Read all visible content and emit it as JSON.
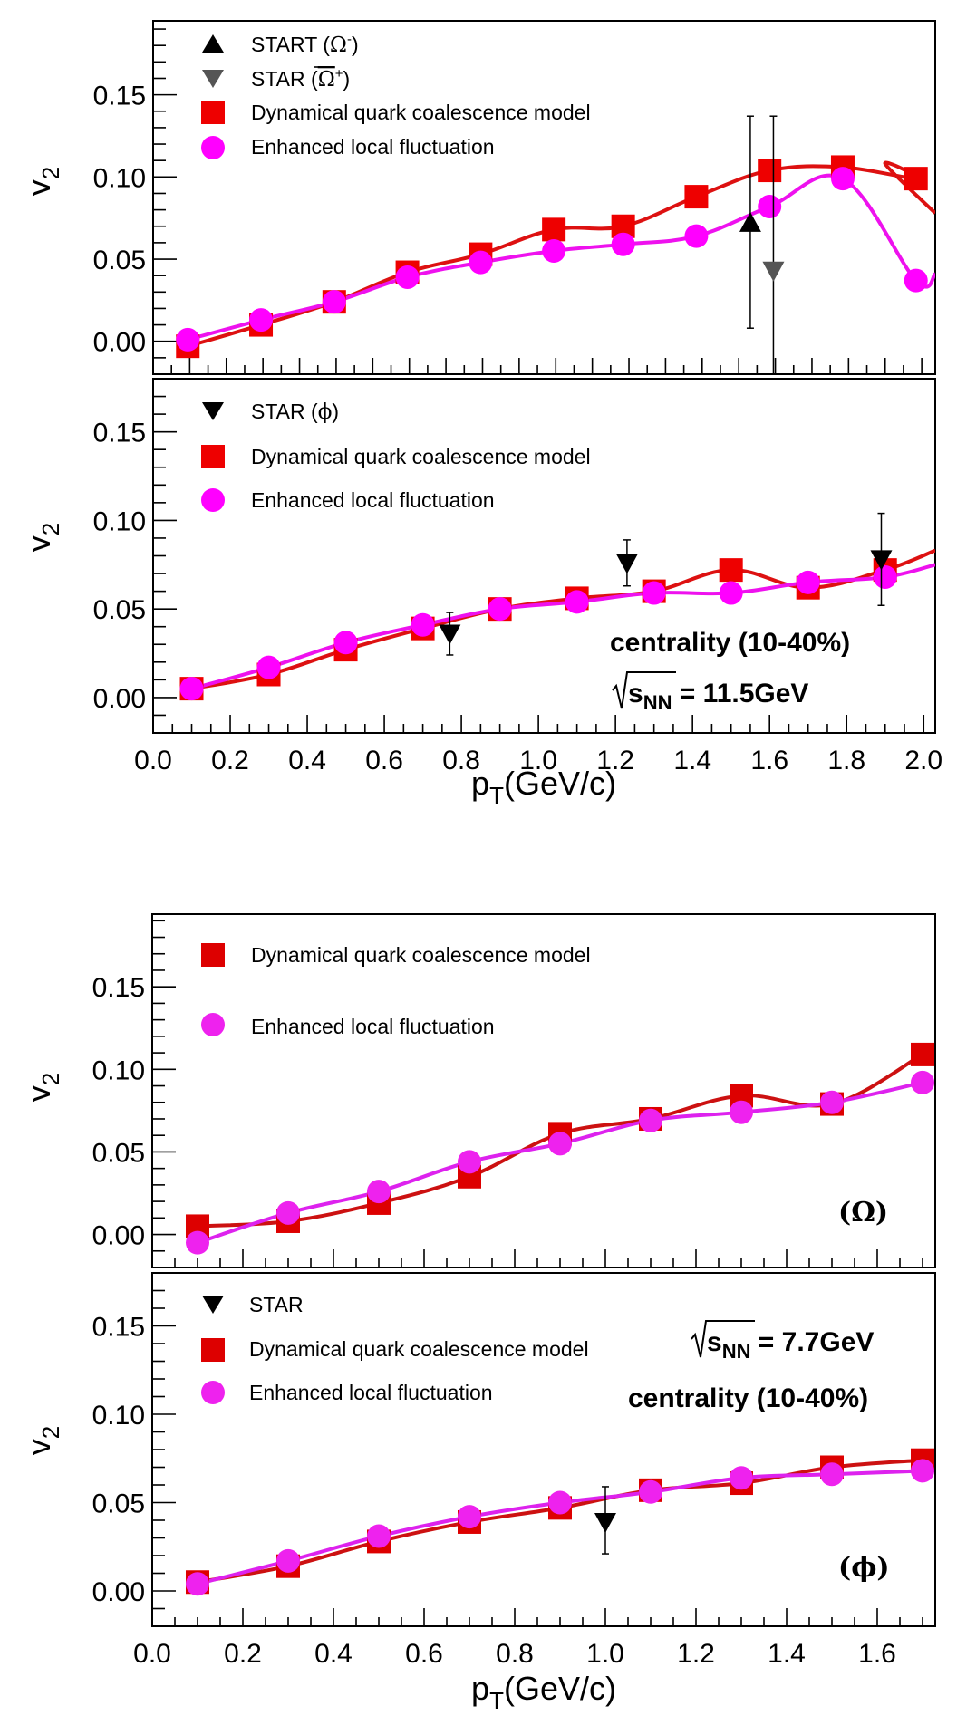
{
  "figure": {
    "upper_figure": {
      "energy_label": "√sNN = 11.5GeV",
      "centrality_label": "centrality (10-40%)"
    },
    "lower_figure": {
      "energy_label": "√sNN = 7.7GeV",
      "centrality_label": "centrality (10-40%)"
    }
  },
  "chart_data": [
    {
      "id": "panel-omega-11p5",
      "type": "line",
      "title": "",
      "xlabel": "",
      "ylabel": "v2",
      "xlim": [
        0.0,
        2.03
      ],
      "ylim": [
        -0.02,
        0.195
      ],
      "yticks": [
        "0.00",
        "0.05",
        "0.10",
        "0.15"
      ],
      "ytick_values": [
        0.0,
        0.05,
        0.1,
        0.15
      ],
      "xticks_shown": false,
      "legend": {
        "placement": "top-left",
        "entries": [
          "START (Ω⁻)",
          "STAR (Ω̄⁺)",
          "Dynamical quark coalescence model",
          "Enhanced local fluctuation"
        ]
      },
      "series": [
        {
          "name": "Dynamical quark coalescence model",
          "marker": "square",
          "color": "#ee0000",
          "line_color": "#dd1111",
          "x": [
            0.09,
            0.28,
            0.47,
            0.66,
            0.85,
            1.04,
            1.22,
            1.41,
            1.6,
            1.79,
            1.98
          ],
          "values": [
            -0.003,
            0.01,
            0.024,
            0.042,
            0.053,
            0.068,
            0.07,
            0.088,
            0.104,
            0.106,
            0.099
          ],
          "curve_tail": [
            [
              1.9,
              0.108
            ],
            [
              2.03,
              0.078
            ]
          ]
        },
        {
          "name": "Enhanced local fluctuation",
          "marker": "circle",
          "color": "#ff00ff",
          "line_color": "#ee11ee",
          "x": [
            0.09,
            0.28,
            0.47,
            0.66,
            0.85,
            1.04,
            1.22,
            1.41,
            1.6,
            1.79,
            1.98
          ],
          "values": [
            0.001,
            0.013,
            0.024,
            0.039,
            0.048,
            0.055,
            0.059,
            0.064,
            0.082,
            0.099,
            0.037
          ],
          "curve_tail": [
            [
              2.03,
              0.041
            ]
          ]
        },
        {
          "name": "START (Ω⁻)",
          "marker": "triangle-up",
          "color": "#000000",
          "x": [
            1.55
          ],
          "values": [
            0.071
          ],
          "err_low": [
            0.008
          ],
          "err_high": [
            0.137
          ]
        },
        {
          "name": "STAR (Ω̄⁺)",
          "marker": "triangle-down",
          "color": "#555555",
          "x": [
            1.61
          ],
          "values": [
            0.043
          ],
          "err_low": [
            -0.02
          ],
          "err_high": [
            0.137
          ]
        }
      ]
    },
    {
      "id": "panel-phi-11p5",
      "type": "line",
      "title": "",
      "xlabel": "pT(GeV/c)",
      "ylabel": "v2",
      "xlim": [
        0.0,
        2.03
      ],
      "ylim": [
        -0.02,
        0.18
      ],
      "yticks": [
        "0.00",
        "0.05",
        "0.10",
        "0.15"
      ],
      "ytick_values": [
        0.0,
        0.05,
        0.1,
        0.15
      ],
      "xticks": [
        "0.0",
        "0.2",
        "0.4",
        "0.6",
        "0.8",
        "1.0",
        "1.2",
        "1.4",
        "1.6",
        "1.8",
        "2.0"
      ],
      "xtick_values": [
        0.0,
        0.2,
        0.4,
        0.6,
        0.8,
        1.0,
        1.2,
        1.4,
        1.6,
        1.8,
        2.0
      ],
      "legend": {
        "placement": "top-left",
        "entries": [
          "STAR (ϕ)",
          "Dynamical quark coalescence model",
          "Enhanced local fluctuation"
        ]
      },
      "annotations": [
        "centrality (10-40%)",
        "√sNN = 11.5GeV"
      ],
      "series": [
        {
          "name": "Dynamical quark coalescence model",
          "marker": "square",
          "color": "#ee0000",
          "line_color": "#dd1111",
          "x": [
            0.1,
            0.3,
            0.5,
            0.7,
            0.9,
            1.1,
            1.3,
            1.5,
            1.7,
            1.9
          ],
          "values": [
            0.005,
            0.013,
            0.027,
            0.039,
            0.05,
            0.056,
            0.06,
            0.072,
            0.062,
            0.072
          ],
          "curve_tail": [
            [
              2.03,
              0.083
            ]
          ]
        },
        {
          "name": "Enhanced local fluctuation",
          "marker": "circle",
          "color": "#ff00ff",
          "line_color": "#ee11ee",
          "x": [
            0.1,
            0.3,
            0.5,
            0.7,
            0.9,
            1.1,
            1.3,
            1.5,
            1.7,
            1.9
          ],
          "values": [
            0.005,
            0.017,
            0.031,
            0.041,
            0.05,
            0.054,
            0.059,
            0.059,
            0.065,
            0.068
          ],
          "curve_tail": [
            [
              2.03,
              0.075
            ]
          ]
        },
        {
          "name": "STAR (ϕ)",
          "marker": "triangle-down",
          "color": "#000000",
          "x": [
            0.77,
            1.23,
            1.89
          ],
          "values": [
            0.036,
            0.076,
            0.078
          ],
          "err_low": [
            0.024,
            0.063,
            0.052
          ],
          "err_high": [
            0.048,
            0.089,
            0.104
          ]
        }
      ]
    },
    {
      "id": "panel-omega-7p7",
      "type": "line",
      "title": "",
      "xlabel": "",
      "ylabel": "v2",
      "xlim": [
        0.0,
        1.728
      ],
      "ylim": [
        -0.02,
        0.194
      ],
      "yticks": [
        "0.00",
        "0.05",
        "0.10",
        "0.15"
      ],
      "ytick_values": [
        0.0,
        0.05,
        0.1,
        0.15
      ],
      "xticks_shown": false,
      "legend": {
        "placement": "top-left",
        "entries": [
          "Dynamical quark coalescence model",
          "Enhanced local fluctuation"
        ]
      },
      "annotations": [
        "(Ω)"
      ],
      "series": [
        {
          "name": "Dynamical quark coalescence model",
          "marker": "square",
          "color": "#dd0000",
          "line_color": "#cc1111",
          "x": [
            0.1,
            0.3,
            0.5,
            0.7,
            0.9,
            1.1,
            1.3,
            1.5,
            1.7
          ],
          "values": [
            0.005,
            0.008,
            0.019,
            0.035,
            0.061,
            0.07,
            0.084,
            0.079,
            0.109
          ]
        },
        {
          "name": "Enhanced local fluctuation",
          "marker": "circle",
          "color": "#ee22ee",
          "line_color": "#dd22ee",
          "x": [
            0.1,
            0.3,
            0.5,
            0.7,
            0.9,
            1.1,
            1.3,
            1.5,
            1.7
          ],
          "values": [
            -0.005,
            0.013,
            0.026,
            0.044,
            0.055,
            0.069,
            0.074,
            0.08,
            0.092
          ]
        }
      ]
    },
    {
      "id": "panel-phi-7p7",
      "type": "line",
      "title": "",
      "xlabel": "pT(GeV/c)",
      "ylabel": "v2",
      "xlim": [
        0.0,
        1.728
      ],
      "ylim": [
        -0.02,
        0.18
      ],
      "yticks": [
        "0.00",
        "0.05",
        "0.10",
        "0.15"
      ],
      "ytick_values": [
        0.0,
        0.05,
        0.1,
        0.15
      ],
      "xticks": [
        "0.0",
        "0.2",
        "0.4",
        "0.6",
        "0.8",
        "1.0",
        "1.2",
        "1.4",
        "1.6"
      ],
      "xtick_values": [
        0.0,
        0.2,
        0.4,
        0.6,
        0.8,
        1.0,
        1.2,
        1.4,
        1.6
      ],
      "legend": {
        "placement": "top-left",
        "entries": [
          "STAR",
          "Dynamical quark coalescence model",
          "Enhanced local fluctuation"
        ]
      },
      "annotations": [
        "√sNN = 7.7GeV",
        "centrality (10-40%)",
        "(ϕ)"
      ],
      "series": [
        {
          "name": "Dynamical quark coalescence model",
          "marker": "square",
          "color": "#dd0000",
          "line_color": "#cc1111",
          "x": [
            0.1,
            0.3,
            0.5,
            0.7,
            0.9,
            1.1,
            1.3,
            1.5,
            1.7
          ],
          "values": [
            0.005,
            0.014,
            0.028,
            0.039,
            0.047,
            0.057,
            0.061,
            0.07,
            0.074
          ]
        },
        {
          "name": "Enhanced local fluctuation",
          "marker": "circle",
          "color": "#ee22ee",
          "line_color": "#dd22ee",
          "x": [
            0.1,
            0.3,
            0.5,
            0.7,
            0.9,
            1.1,
            1.3,
            1.5,
            1.7
          ],
          "values": [
            0.004,
            0.017,
            0.031,
            0.042,
            0.05,
            0.056,
            0.064,
            0.066,
            0.068
          ]
        },
        {
          "name": "STAR",
          "marker": "triangle-down",
          "color": "#000000",
          "x": [
            1.0
          ],
          "values": [
            0.039
          ],
          "err_low": [
            0.021
          ],
          "err_high": [
            0.059
          ]
        }
      ]
    }
  ],
  "text": {
    "ylabel_main": "v",
    "ylabel_sub": "2",
    "xlabel_main": "p",
    "xlabel_sub": "T",
    "xlabel_rest": "(GeV/c)",
    "p1_leg1_a": "START (",
    "p1_leg1_sym": "Ω",
    "p1_leg1_sup": "-",
    "p1_leg1_b": ")",
    "p1_leg2_a": "STAR (",
    "p1_leg2_sym": "Ω",
    "p1_leg2_sup": "+",
    "p1_leg2_b": ")",
    "dqcm": "Dynamical quark coalescence model",
    "elf": "Enhanced local fluctuation",
    "p2_leg1_a": "STAR (",
    "p2_leg1_sym": "ϕ",
    "p2_leg1_b": ")",
    "p4_leg1": "STAR",
    "centrality": "centrality (10-40%)",
    "sqrt_s": "s",
    "sqrt_sub": "NN",
    "energy_115": " = 11.5GeV",
    "energy_77": " = 7.7GeV",
    "omega_tag": "(Ω)",
    "phi_tag": "(ϕ)"
  }
}
